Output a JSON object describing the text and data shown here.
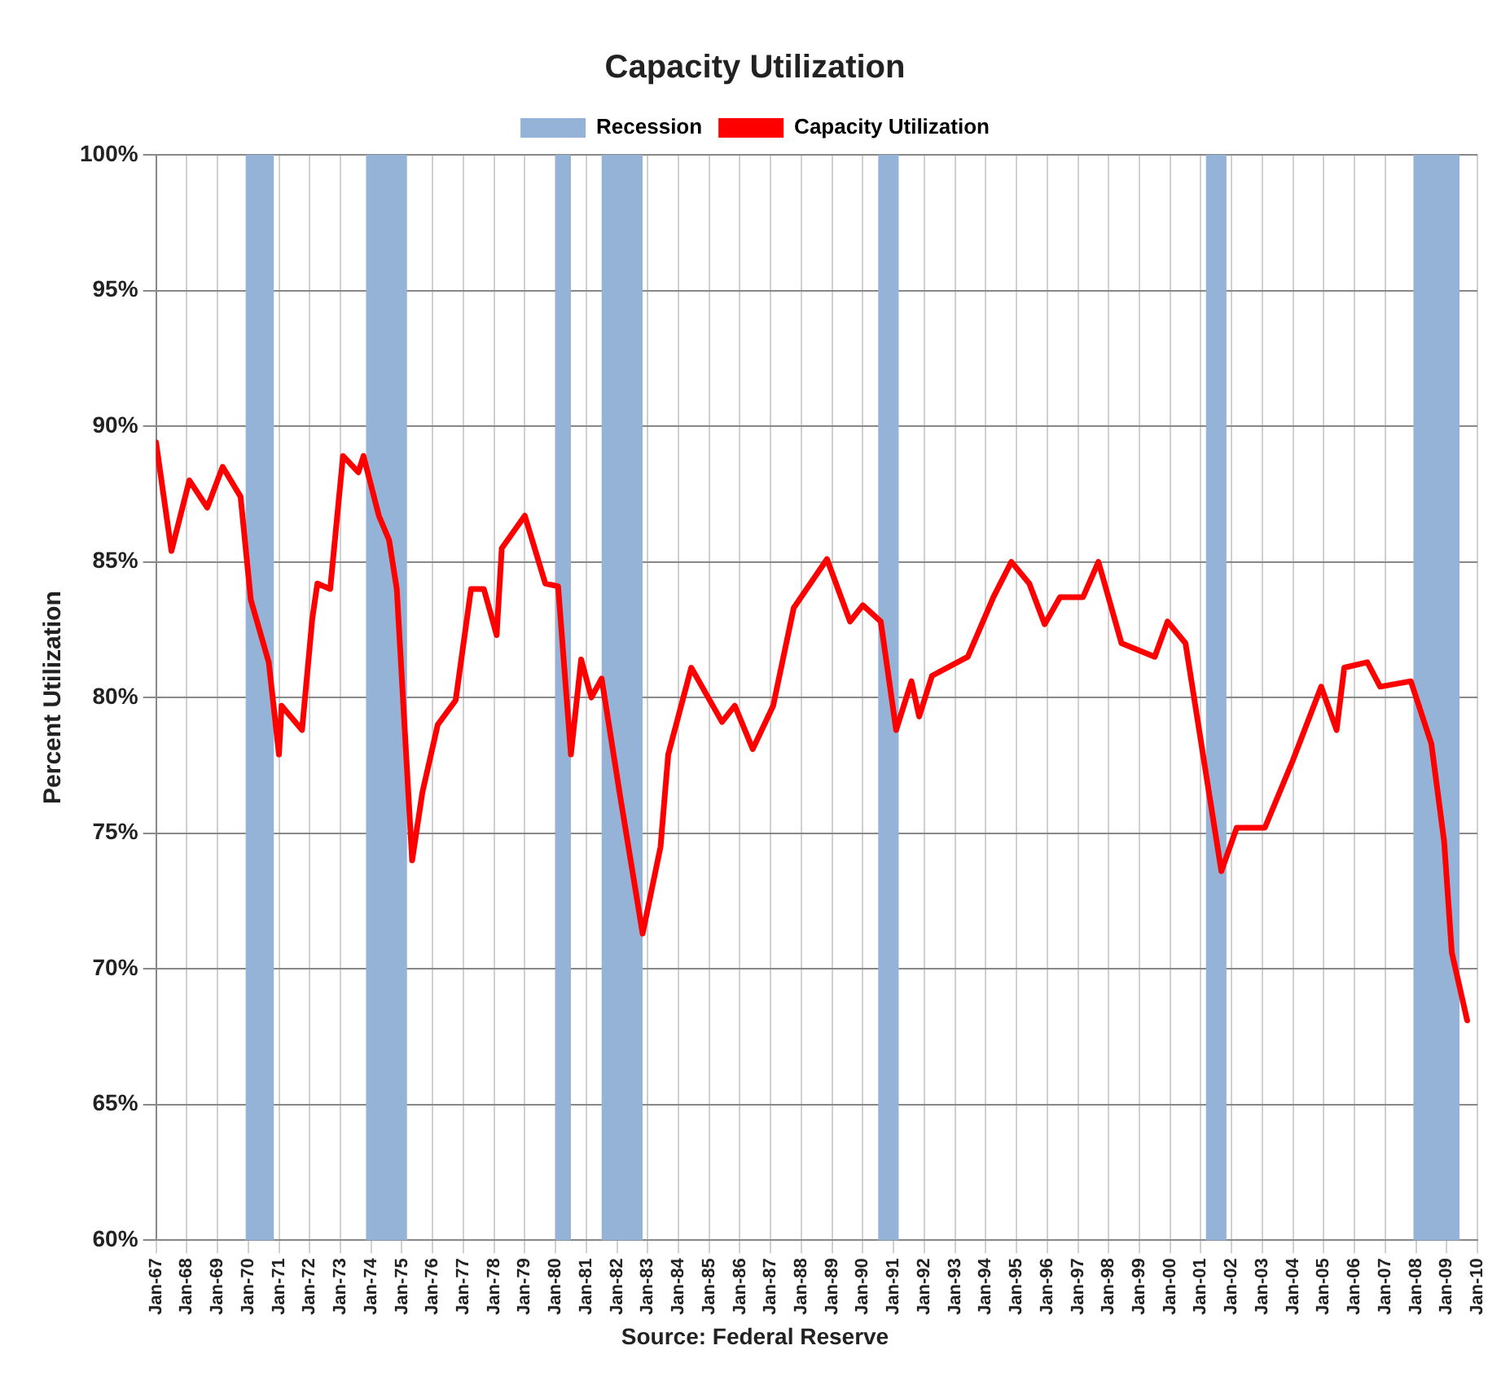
{
  "chart_data": {
    "type": "line",
    "title": "Capacity Utilization",
    "ylabel": "Percent Utilization",
    "annotations": [
      "Source: Federal Reserve"
    ],
    "x": [
      "1967-01",
      "1967-07",
      "1968-02",
      "1968-09",
      "1969-03",
      "1969-10",
      "1970-02",
      "1970-09",
      "1971-01",
      "1971-02",
      "1971-10",
      "1972-02",
      "1972-04",
      "1972-09",
      "1973-02",
      "1973-08",
      "1973-10",
      "1974-04",
      "1974-08",
      "1974-11",
      "1975-05",
      "1975-09",
      "1976-03",
      "1976-10",
      "1977-04",
      "1977-09",
      "1978-02",
      "1978-04",
      "1979-01",
      "1979-09",
      "1980-02",
      "1980-07",
      "1980-11",
      "1981-03",
      "1981-07",
      "1982-02",
      "1982-11",
      "1983-06",
      "1983-09",
      "1984-06",
      "1985-06",
      "1985-11",
      "1986-06",
      "1987-02",
      "1987-10",
      "1988-11",
      "1989-08",
      "1990-01",
      "1990-08",
      "1991-02",
      "1991-08",
      "1991-11",
      "1992-04",
      "1993-06",
      "1994-04",
      "1994-11",
      "1995-06",
      "1995-12",
      "1996-06",
      "1997-03",
      "1997-09",
      "1998-06",
      "1999-07",
      "1999-12",
      "2000-07",
      "2001-09",
      "2002-03",
      "2003-02",
      "2004-01",
      "2004-12",
      "2005-06",
      "2005-09",
      "2006-06",
      "2006-11",
      "2007-11",
      "2008-07",
      "2008-12",
      "2009-03",
      "2009-09"
    ],
    "series": [
      {
        "name": "Capacity Utilization",
        "color": "#ff0000",
        "values": [
          89.4,
          85.4,
          88.0,
          87.0,
          88.5,
          87.4,
          83.6,
          81.3,
          77.9,
          79.7,
          78.8,
          82.9,
          84.2,
          84.0,
          88.9,
          88.3,
          88.9,
          86.7,
          85.8,
          84.0,
          74.0,
          76.5,
          79.0,
          79.9,
          84.0,
          84.0,
          82.3,
          85.5,
          86.7,
          84.2,
          84.1,
          77.9,
          81.4,
          80.0,
          80.7,
          76.5,
          71.3,
          74.5,
          77.9,
          81.1,
          79.1,
          79.7,
          78.1,
          79.7,
          83.3,
          85.1,
          82.8,
          83.4,
          82.8,
          78.8,
          80.6,
          79.3,
          80.8,
          81.5,
          83.7,
          85.0,
          84.2,
          82.7,
          83.7,
          83.7,
          85.0,
          82.0,
          81.5,
          82.8,
          82.0,
          73.6,
          75.2,
          75.2,
          77.7,
          80.4,
          78.8,
          81.1,
          81.3,
          80.4,
          80.6,
          78.3,
          74.7,
          70.6,
          68.1
        ]
      }
    ],
    "bands": [
      {
        "axis": "x",
        "from": "1969-12",
        "to": "1970-11",
        "label": "Recession",
        "color": "#95b3d7"
      },
      {
        "axis": "x",
        "from": "1973-11",
        "to": "1975-03",
        "color": "#95b3d7"
      },
      {
        "axis": "x",
        "from": "1980-01",
        "to": "1980-07",
        "color": "#95b3d7"
      },
      {
        "axis": "x",
        "from": "1981-07",
        "to": "1982-11",
        "color": "#95b3d7"
      },
      {
        "axis": "x",
        "from": "1990-07",
        "to": "1991-03",
        "color": "#95b3d7"
      },
      {
        "axis": "x",
        "from": "2001-03",
        "to": "2001-11",
        "color": "#95b3d7"
      },
      {
        "axis": "x",
        "from": "2007-12",
        "to": "2009-06",
        "color": "#95b3d7"
      }
    ],
    "xlim": [
      "1967-01",
      "2010-01"
    ],
    "xticks": [
      {
        "value": "1967-01",
        "label": "Jan-67"
      },
      {
        "value": "1968-01",
        "label": "Jan-68"
      },
      {
        "value": "1969-01",
        "label": "Jan-69"
      },
      {
        "value": "1970-01",
        "label": "Jan-70"
      },
      {
        "value": "1971-01",
        "label": "Jan-71"
      },
      {
        "value": "1972-01",
        "label": "Jan-72"
      },
      {
        "value": "1973-01",
        "label": "Jan-73"
      },
      {
        "value": "1974-01",
        "label": "Jan-74"
      },
      {
        "value": "1975-01",
        "label": "Jan-75"
      },
      {
        "value": "1976-01",
        "label": "Jan-76"
      },
      {
        "value": "1977-01",
        "label": "Jan-77"
      },
      {
        "value": "1978-01",
        "label": "Jan-78"
      },
      {
        "value": "1979-01",
        "label": "Jan-79"
      },
      {
        "value": "1980-01",
        "label": "Jan-80"
      },
      {
        "value": "1981-01",
        "label": "Jan-81"
      },
      {
        "value": "1982-01",
        "label": "Jan-82"
      },
      {
        "value": "1983-01",
        "label": "Jan-83"
      },
      {
        "value": "1984-01",
        "label": "Jan-84"
      },
      {
        "value": "1985-01",
        "label": "Jan-85"
      },
      {
        "value": "1986-01",
        "label": "Jan-86"
      },
      {
        "value": "1987-01",
        "label": "Jan-87"
      },
      {
        "value": "1988-01",
        "label": "Jan-88"
      },
      {
        "value": "1989-01",
        "label": "Jan-89"
      },
      {
        "value": "1990-01",
        "label": "Jan-90"
      },
      {
        "value": "1991-01",
        "label": "Jan-91"
      },
      {
        "value": "1992-01",
        "label": "Jan-92"
      },
      {
        "value": "1993-01",
        "label": "Jan-93"
      },
      {
        "value": "1994-01",
        "label": "Jan-94"
      },
      {
        "value": "1995-01",
        "label": "Jan-95"
      },
      {
        "value": "1996-01",
        "label": "Jan-96"
      },
      {
        "value": "1997-01",
        "label": "Jan-97"
      },
      {
        "value": "1998-01",
        "label": "Jan-98"
      },
      {
        "value": "1999-01",
        "label": "Jan-99"
      },
      {
        "value": "2000-01",
        "label": "Jan-00"
      },
      {
        "value": "2001-01",
        "label": "Jan-01"
      },
      {
        "value": "2002-01",
        "label": "Jan-02"
      },
      {
        "value": "2003-01",
        "label": "Jan-03"
      },
      {
        "value": "2004-01",
        "label": "Jan-04"
      },
      {
        "value": "2005-01",
        "label": "Jan-05"
      },
      {
        "value": "2006-01",
        "label": "Jan-06"
      },
      {
        "value": "2007-01",
        "label": "Jan-07"
      },
      {
        "value": "2008-01",
        "label": "Jan-08"
      },
      {
        "value": "2009-01",
        "label": "Jan-09"
      },
      {
        "value": "2010-01",
        "label": "Jan-10"
      }
    ],
    "ylim": [
      60,
      100
    ],
    "yticks": [
      {
        "value": 60,
        "label": "60%"
      },
      {
        "value": 65,
        "label": "65%"
      },
      {
        "value": 70,
        "label": "70%"
      },
      {
        "value": 75,
        "label": "75%"
      },
      {
        "value": 80,
        "label": "80%"
      },
      {
        "value": 85,
        "label": "85%"
      },
      {
        "value": 90,
        "label": "90%"
      },
      {
        "value": 95,
        "label": "95%"
      },
      {
        "value": 100,
        "label": "100%"
      }
    ],
    "grid": true,
    "legend": "top",
    "marker": "none",
    "line_style": "solid"
  }
}
